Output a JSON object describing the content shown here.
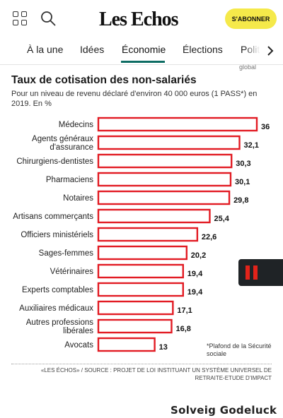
{
  "header": {
    "logo": "Les Echos",
    "subscribe_label": "S'ABONNER",
    "icons": [
      "grid-icon",
      "search-icon"
    ],
    "accent": "#f5e94a"
  },
  "nav": {
    "tabs": [
      {
        "label": "À la une"
      },
      {
        "label": "Idées"
      },
      {
        "label": "Économie"
      },
      {
        "label": "Élections"
      },
      {
        "label": "Polit"
      }
    ],
    "active": "Économie",
    "underline_color": "#0d6c63",
    "arrow_icon": "chevron-right-icon"
  },
  "cut_text": "global",
  "chart_data": {
    "type": "bar",
    "orientation": "horizontal",
    "title": "Taux de cotisation des non-salariés",
    "subtitle": "Pour un niveau de revenu déclaré d'environ  40 000 euros (1 PASS*) en 2019. En %",
    "categories": [
      "Médecins",
      "Agents généraux d'assurance",
      "Chirurgiens-dentistes",
      "Pharmaciens",
      "Notaires",
      "Artisans commerçants",
      "Officiers ministériels",
      "Sages-femmes",
      "Vétérinaires",
      "Experts comptables",
      "Auxiliaires médicaux",
      "Autres professions libérales",
      "Avocats"
    ],
    "values": [
      36,
      32.1,
      30.3,
      30.1,
      29.8,
      25.4,
      22.6,
      20.2,
      19.4,
      19.4,
      17.1,
      16.8,
      13
    ],
    "value_labels": [
      "36",
      "32,1",
      "30,3",
      "30,1",
      "29,8",
      "25,4",
      "22,6",
      "20,2",
      "19,4",
      "19,4",
      "17,1",
      "16,8",
      "13"
    ],
    "xlim": [
      0,
      36
    ],
    "grid": false,
    "bar_border_color": "#e21b23",
    "footnote": "*Plafond de la Sécurité sociale",
    "source": "«LES ÉCHOS» / SOURCE : PROJET DE LOI INSTITUANT UN SYSTÈME UNIVERSEL DE RETRAITE-ETUDE D'IMPACT"
  },
  "author": "Solveig Godeluck",
  "media": {
    "pause_icon": "pause-icon",
    "accent": "#e2231a"
  }
}
